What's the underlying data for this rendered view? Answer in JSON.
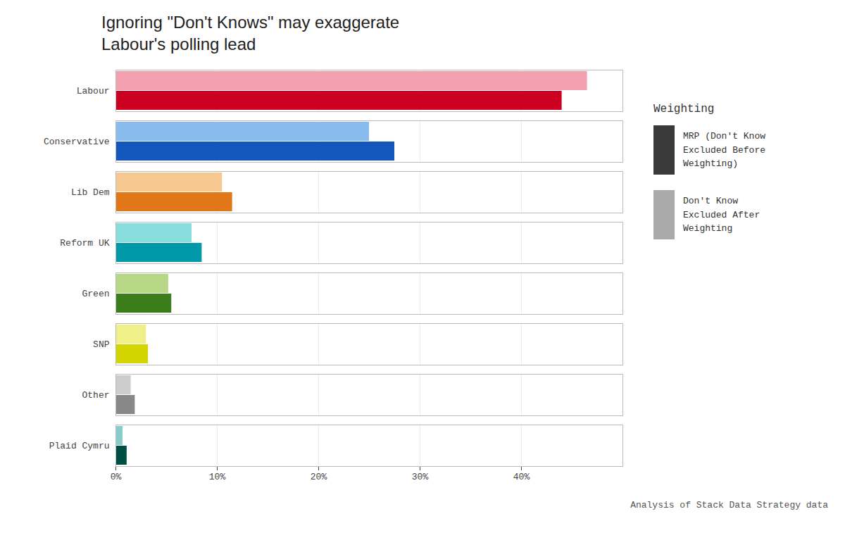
{
  "chart_data": {
    "type": "bar",
    "orientation": "horizontal",
    "title": "Ignoring \"Don't Knows\" may exaggerate\nLabour's polling lead",
    "categories": [
      "Labour",
      "Conservative",
      "Lib Dem",
      "Reform UK",
      "Green",
      "SNP",
      "Other",
      "Plaid Cymru"
    ],
    "series": [
      {
        "name": "MRP (Don't Know\nExcluded Before\nWeighting)",
        "color": "#3a3a3a",
        "colors": [
          "#cc0020",
          "#1357bd",
          "#e07818",
          "#0099aa",
          "#3a7d1a",
          "#d4d400",
          "#888888",
          "#004d44"
        ],
        "values": [
          44.0,
          27.5,
          11.5,
          8.5,
          5.5,
          3.2,
          1.9,
          1.1
        ]
      },
      {
        "name": "Don't Know\nExcluded After\nWeighting",
        "color": "#aaaaaa",
        "colors": [
          "#f2a0b0",
          "#88bbee",
          "#f5c890",
          "#88dddd",
          "#b8d888",
          "#f0f088",
          "#cccccc",
          "#88cccc"
        ],
        "values": [
          46.5,
          25.0,
          10.5,
          7.5,
          5.2,
          3.0,
          1.5,
          0.7
        ]
      }
    ],
    "legend_title": "Weighting",
    "legend": "right",
    "caption": "Analysis of Stack Data Strategy data",
    "xlim": [
      0,
      50
    ],
    "xticks": [
      {
        "value": 0,
        "label": "0%"
      },
      {
        "value": 10,
        "label": "10%"
      },
      {
        "value": 20,
        "label": "20%"
      },
      {
        "value": 30,
        "label": "30%"
      },
      {
        "value": 40,
        "label": "40%"
      }
    ],
    "grid": true
  }
}
